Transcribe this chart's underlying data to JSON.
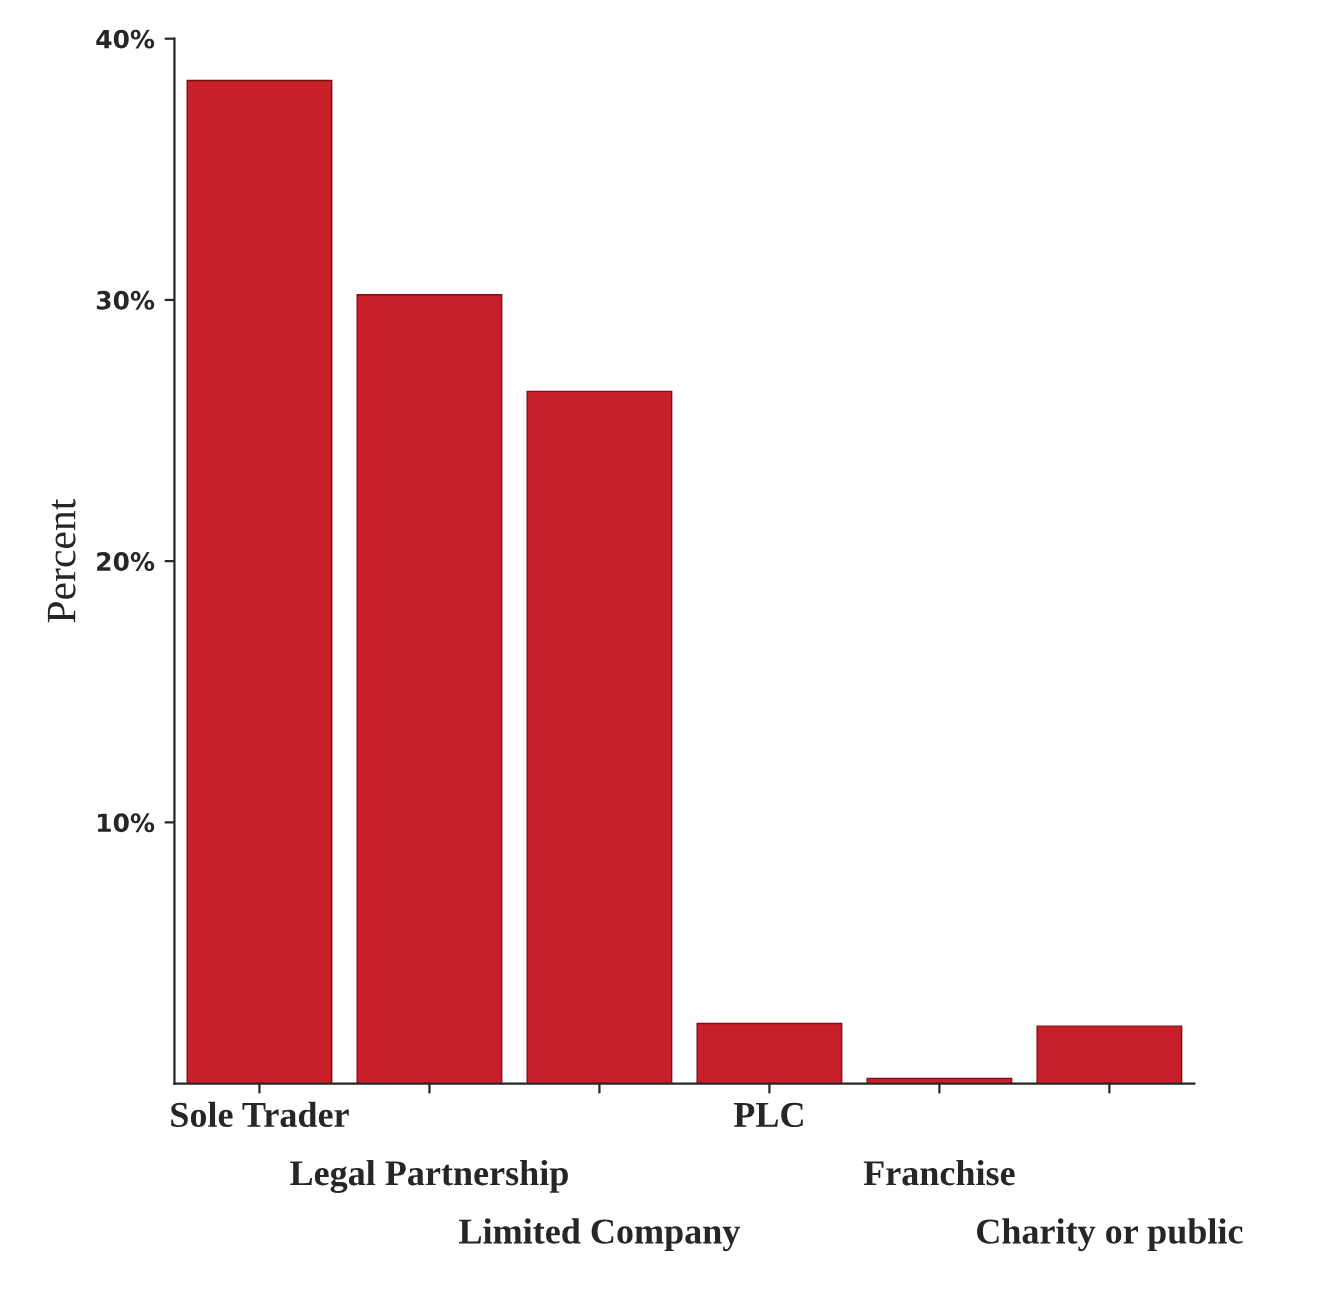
{
  "chart_data": {
    "type": "bar",
    "ylabel": "Percent",
    "categories": [
      "Sole Trader",
      "Legal Partnership",
      "Limited Company",
      "PLC",
      "Franchise",
      "Charity or public"
    ],
    "values": [
      38.4,
      30.2,
      26.5,
      2.3,
      0.2,
      2.2
    ],
    "color": "#c8202a",
    "ylim": [
      0,
      40
    ],
    "yticks": [
      {
        "value": 10,
        "label": "10%"
      },
      {
        "value": 20,
        "label": "20%"
      },
      {
        "value": 30,
        "label": "30%"
      },
      {
        "value": 40,
        "label": "40%"
      }
    ],
    "grid": false,
    "legend": false
  }
}
